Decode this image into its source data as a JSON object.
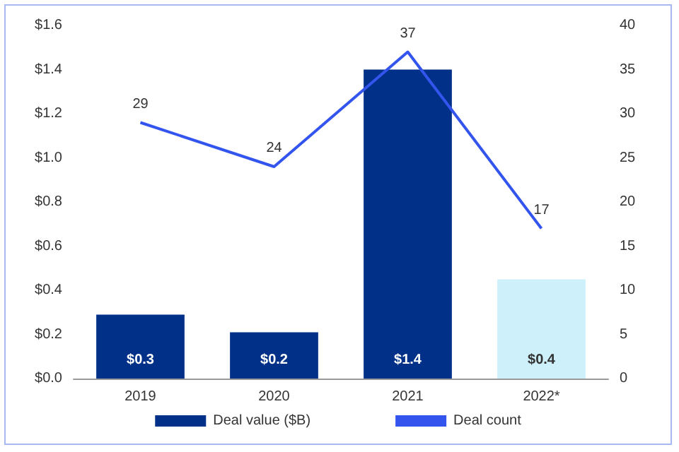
{
  "chart_data": {
    "type": "bar",
    "categories": [
      "2019",
      "2020",
      "2021",
      "2022*"
    ],
    "series": [
      {
        "name": "Deal value ($B)",
        "color": "#003087",
        "colors": [
          "#003087",
          "#003087",
          "#003087",
          "#cdf0fb"
        ],
        "values": [
          0.29,
          0.21,
          1.4,
          0.45
        ],
        "value_labels": [
          "$0.3",
          "$0.2",
          "$1.4",
          "$0.4"
        ]
      },
      {
        "name": "Deal count",
        "type": "line",
        "axis": "y2",
        "color": "#3355ee",
        "values": [
          29,
          24,
          37,
          17
        ],
        "value_labels": [
          "29",
          "24",
          "37",
          "17"
        ]
      }
    ],
    "ylim": [
      0,
      1.6
    ],
    "yticks": [
      {
        "value": 0,
        "label": "$0.0"
      },
      {
        "value": 0.2,
        "label": "$0.2"
      },
      {
        "value": 0.4,
        "label": "$0.4"
      },
      {
        "value": 0.6,
        "label": "$0.6"
      },
      {
        "value": 0.8,
        "label": "$0.8"
      },
      {
        "value": 1.0,
        "label": "$1.0"
      },
      {
        "value": 1.2,
        "label": "$1.2"
      },
      {
        "value": 1.4,
        "label": "$1.4"
      },
      {
        "value": 1.6,
        "label": "$1.6"
      }
    ],
    "y2lim": [
      0,
      40
    ],
    "y2ticks": [
      0,
      5,
      10,
      15,
      20,
      25,
      30,
      35,
      40
    ],
    "grid": false,
    "legend": "bottom",
    "marker": "none"
  }
}
